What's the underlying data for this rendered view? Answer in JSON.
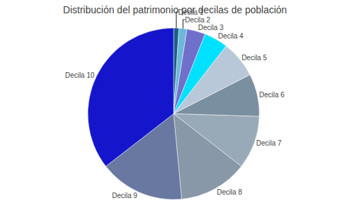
{
  "chart_data": {
    "type": "pie",
    "title": "Distribución del patrimonio por decilas de población",
    "categories": [
      "Decila 1",
      "Decila 2",
      "Decila 3",
      "Decila 4",
      "Decila 5",
      "Decila 6",
      "Decila 7",
      "Decila 8",
      "Decila 9",
      "Decila 10"
    ],
    "values": [
      1.0,
      1.5,
      3.5,
      4.5,
      7.0,
      8.0,
      10.0,
      13.0,
      16.0,
      35.5
    ],
    "colors": [
      "#1c5f8a",
      "#6cb8d8",
      "#7070cc",
      "#00e0ff",
      "#b8c8d8",
      "#7a8fa0",
      "#98aab8",
      "#8898a8",
      "#6878a0",
      "#1515cc"
    ]
  }
}
